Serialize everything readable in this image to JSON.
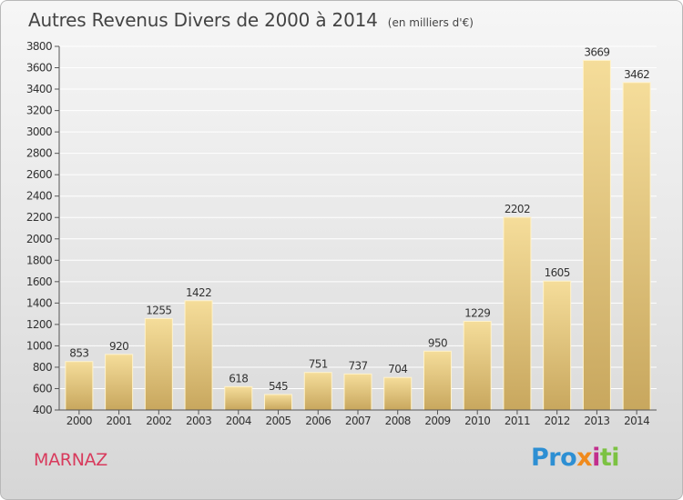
{
  "title": "Autres Revenus Divers de 2000 à 2014",
  "unit_note": "(en milliers d'€)",
  "commune": "MARNAZ",
  "logo": {
    "p1": "Pro",
    "p2": "x",
    "p3": "i",
    "p4": "ti"
  },
  "colors": {
    "bar_top": "#f5dd9a",
    "bar_bottom": "#c8a75e",
    "commune": "#d83a5c",
    "grid": "#ffffff"
  },
  "chart_data": {
    "type": "bar",
    "categories": [
      "2000",
      "2001",
      "2002",
      "2003",
      "2004",
      "2005",
      "2006",
      "2007",
      "2008",
      "2009",
      "2010",
      "2011",
      "2012",
      "2013",
      "2014"
    ],
    "values": [
      853,
      920,
      1255,
      1422,
      618,
      545,
      751,
      737,
      704,
      950,
      1229,
      2202,
      1605,
      3669,
      3462
    ],
    "ylim": [
      400,
      3800
    ],
    "yticks": [
      400,
      600,
      800,
      1000,
      1200,
      1400,
      1600,
      1800,
      2000,
      2200,
      2400,
      2600,
      2800,
      3000,
      3200,
      3400,
      3600,
      3800
    ],
    "grid": true,
    "data_labels": true
  }
}
